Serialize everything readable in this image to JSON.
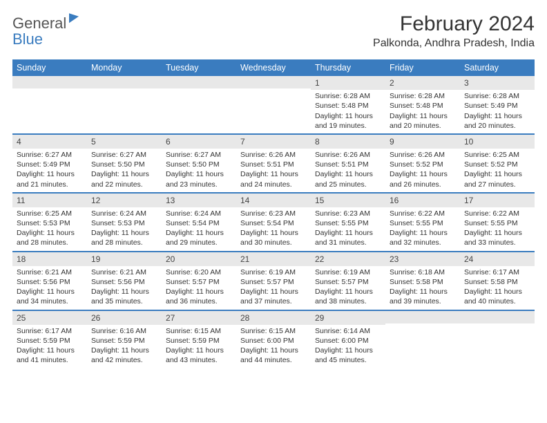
{
  "brand": {
    "text1": "General",
    "text2": "Blue"
  },
  "title": "February 2024",
  "location": "Palkonda, Andhra Pradesh, India",
  "colors": {
    "header_bg": "#3a7cbf",
    "daynum_bg": "#e8e8e8",
    "text": "#333333",
    "bg": "#ffffff"
  },
  "typography": {
    "title_fontsize": 30,
    "location_fontsize": 16,
    "weekday_fontsize": 12.5,
    "cell_fontsize": 10.5
  },
  "weekdays": [
    "Sunday",
    "Monday",
    "Tuesday",
    "Wednesday",
    "Thursday",
    "Friday",
    "Saturday"
  ],
  "weeks": [
    [
      null,
      null,
      null,
      null,
      {
        "n": "1",
        "sr": "Sunrise: 6:28 AM",
        "ss": "Sunset: 5:48 PM",
        "d1": "Daylight: 11 hours",
        "d2": "and 19 minutes."
      },
      {
        "n": "2",
        "sr": "Sunrise: 6:28 AM",
        "ss": "Sunset: 5:48 PM",
        "d1": "Daylight: 11 hours",
        "d2": "and 20 minutes."
      },
      {
        "n": "3",
        "sr": "Sunrise: 6:28 AM",
        "ss": "Sunset: 5:49 PM",
        "d1": "Daylight: 11 hours",
        "d2": "and 20 minutes."
      }
    ],
    [
      {
        "n": "4",
        "sr": "Sunrise: 6:27 AM",
        "ss": "Sunset: 5:49 PM",
        "d1": "Daylight: 11 hours",
        "d2": "and 21 minutes."
      },
      {
        "n": "5",
        "sr": "Sunrise: 6:27 AM",
        "ss": "Sunset: 5:50 PM",
        "d1": "Daylight: 11 hours",
        "d2": "and 22 minutes."
      },
      {
        "n": "6",
        "sr": "Sunrise: 6:27 AM",
        "ss": "Sunset: 5:50 PM",
        "d1": "Daylight: 11 hours",
        "d2": "and 23 minutes."
      },
      {
        "n": "7",
        "sr": "Sunrise: 6:26 AM",
        "ss": "Sunset: 5:51 PM",
        "d1": "Daylight: 11 hours",
        "d2": "and 24 minutes."
      },
      {
        "n": "8",
        "sr": "Sunrise: 6:26 AM",
        "ss": "Sunset: 5:51 PM",
        "d1": "Daylight: 11 hours",
        "d2": "and 25 minutes."
      },
      {
        "n": "9",
        "sr": "Sunrise: 6:26 AM",
        "ss": "Sunset: 5:52 PM",
        "d1": "Daylight: 11 hours",
        "d2": "and 26 minutes."
      },
      {
        "n": "10",
        "sr": "Sunrise: 6:25 AM",
        "ss": "Sunset: 5:52 PM",
        "d1": "Daylight: 11 hours",
        "d2": "and 27 minutes."
      }
    ],
    [
      {
        "n": "11",
        "sr": "Sunrise: 6:25 AM",
        "ss": "Sunset: 5:53 PM",
        "d1": "Daylight: 11 hours",
        "d2": "and 28 minutes."
      },
      {
        "n": "12",
        "sr": "Sunrise: 6:24 AM",
        "ss": "Sunset: 5:53 PM",
        "d1": "Daylight: 11 hours",
        "d2": "and 28 minutes."
      },
      {
        "n": "13",
        "sr": "Sunrise: 6:24 AM",
        "ss": "Sunset: 5:54 PM",
        "d1": "Daylight: 11 hours",
        "d2": "and 29 minutes."
      },
      {
        "n": "14",
        "sr": "Sunrise: 6:23 AM",
        "ss": "Sunset: 5:54 PM",
        "d1": "Daylight: 11 hours",
        "d2": "and 30 minutes."
      },
      {
        "n": "15",
        "sr": "Sunrise: 6:23 AM",
        "ss": "Sunset: 5:55 PM",
        "d1": "Daylight: 11 hours",
        "d2": "and 31 minutes."
      },
      {
        "n": "16",
        "sr": "Sunrise: 6:22 AM",
        "ss": "Sunset: 5:55 PM",
        "d1": "Daylight: 11 hours",
        "d2": "and 32 minutes."
      },
      {
        "n": "17",
        "sr": "Sunrise: 6:22 AM",
        "ss": "Sunset: 5:55 PM",
        "d1": "Daylight: 11 hours",
        "d2": "and 33 minutes."
      }
    ],
    [
      {
        "n": "18",
        "sr": "Sunrise: 6:21 AM",
        "ss": "Sunset: 5:56 PM",
        "d1": "Daylight: 11 hours",
        "d2": "and 34 minutes."
      },
      {
        "n": "19",
        "sr": "Sunrise: 6:21 AM",
        "ss": "Sunset: 5:56 PM",
        "d1": "Daylight: 11 hours",
        "d2": "and 35 minutes."
      },
      {
        "n": "20",
        "sr": "Sunrise: 6:20 AM",
        "ss": "Sunset: 5:57 PM",
        "d1": "Daylight: 11 hours",
        "d2": "and 36 minutes."
      },
      {
        "n": "21",
        "sr": "Sunrise: 6:19 AM",
        "ss": "Sunset: 5:57 PM",
        "d1": "Daylight: 11 hours",
        "d2": "and 37 minutes."
      },
      {
        "n": "22",
        "sr": "Sunrise: 6:19 AM",
        "ss": "Sunset: 5:57 PM",
        "d1": "Daylight: 11 hours",
        "d2": "and 38 minutes."
      },
      {
        "n": "23",
        "sr": "Sunrise: 6:18 AM",
        "ss": "Sunset: 5:58 PM",
        "d1": "Daylight: 11 hours",
        "d2": "and 39 minutes."
      },
      {
        "n": "24",
        "sr": "Sunrise: 6:17 AM",
        "ss": "Sunset: 5:58 PM",
        "d1": "Daylight: 11 hours",
        "d2": "and 40 minutes."
      }
    ],
    [
      {
        "n": "25",
        "sr": "Sunrise: 6:17 AM",
        "ss": "Sunset: 5:59 PM",
        "d1": "Daylight: 11 hours",
        "d2": "and 41 minutes."
      },
      {
        "n": "26",
        "sr": "Sunrise: 6:16 AM",
        "ss": "Sunset: 5:59 PM",
        "d1": "Daylight: 11 hours",
        "d2": "and 42 minutes."
      },
      {
        "n": "27",
        "sr": "Sunrise: 6:15 AM",
        "ss": "Sunset: 5:59 PM",
        "d1": "Daylight: 11 hours",
        "d2": "and 43 minutes."
      },
      {
        "n": "28",
        "sr": "Sunrise: 6:15 AM",
        "ss": "Sunset: 6:00 PM",
        "d1": "Daylight: 11 hours",
        "d2": "and 44 minutes."
      },
      {
        "n": "29",
        "sr": "Sunrise: 6:14 AM",
        "ss": "Sunset: 6:00 PM",
        "d1": "Daylight: 11 hours",
        "d2": "and 45 minutes."
      },
      null,
      null
    ]
  ]
}
